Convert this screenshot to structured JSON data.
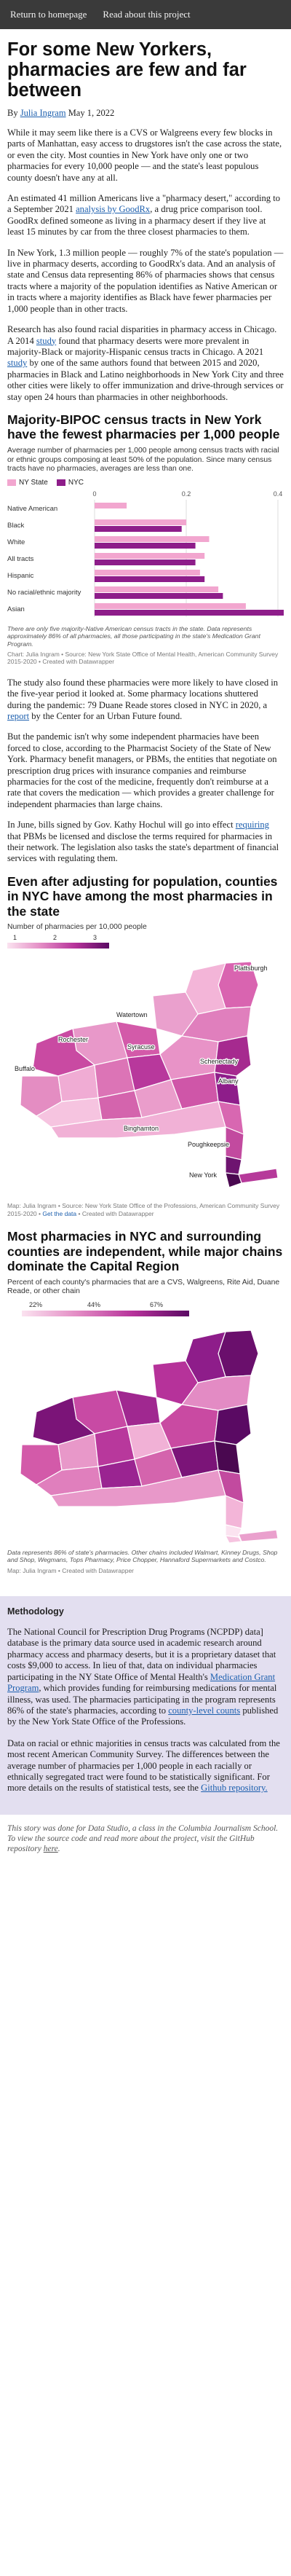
{
  "nav": {
    "home": "Return to homepage",
    "about": "Read about this project"
  },
  "article": {
    "title": "For some New Yorkers, pharmacies are few and far between",
    "byline_prefix": "By ",
    "author": "Julia Ingram",
    "date": "May 1, 2022",
    "p1": "While it may seem like there is a CVS or Walgreens every few blocks in parts of Manhattan, easy access to drugstores isn't the case across the state, or even the city. Most counties in New York have only one or two pharmacies for every 10,000 people — and the state's least populous county doesn't have any at all.",
    "p2a": "An estimated 41 million Americans live a \"pharmacy desert,\" according to a September 2021 ",
    "p2link": "analysis by GoodRx",
    "p2b": ", a drug price comparison tool. GoodRx defined someone as living in a pharmacy desert if they live at least 15 minutes by car from the three closest pharmacies to them.",
    "p3": "In New York, 1.3 million people — roughly 7% of the state's population — live in pharmacy deserts, according to GoodRx's data. And an analysis of state and Census data representing 86% of pharmacies shows that census tracts where a majority of the population identifies as Native American or in tracts where a majority identifies as Black have fewer pharmacies per 1,000 people than in other tracts.",
    "p4a": "Research has also found racial disparities in pharmacy access in Chicago. A 2014 ",
    "p4link1": "study",
    "p4b": " found that pharmacy deserts were more prevalent in majority-Black or majority-Hispanic census tracts in Chicago. A 2021 ",
    "p4link2": "study",
    "p4c": " by one of the same authors found that between 2015 and 2020, pharmacies in Black and Latino neighborhoods in New York City and three other cities were likely to offer immunization and drive-through services or stay open 24 hours than pharmacies in other neighborhoods.",
    "p5": "The study also found these pharmacies were more likely to have closed in the five-year period it looked at. Some pharmacy locations shuttered during the pandemic: 79 Duane Reade stores closed in NYC in 2020, a ",
    "p5link": "report",
    "p5b": " by the Center for an Urban Future found.",
    "p6": "But the pandemic isn't why some independent pharmacies have been forced to close, according to the Pharmacist Society of the State of New York. Pharmacy benefit managers, or PBMs, the entities that negotiate on prescription drug prices with insurance companies and reimburse pharmacies for the cost of the medicine, frequently don't reimburse at a rate that covers the medication — which provides a greater challenge for independent pharmacies than large chains.",
    "p7a": "In June, bills signed by Gov. Kathy Hochul will go into effect ",
    "p7link": "requiring",
    "p7b": " that PBMs be licensed and disclose the terms required for pharmacies in their network. The legislation also tasks the state's department of financial services with regulating them."
  },
  "chart1": {
    "title": "Majority-BIPOC census tracts in New York have the fewest pharmacies per 1,000 people",
    "subtitle": "Average number of pharmacies per 1,000 people among census tracts with racial or ethnic groups composing at least 50% of the population. Since many census tracts have no pharmacies, averages are less than one.",
    "note": "There are only five majority-Native American census tracts in the state. Data represents approximately 86% of all pharmacies, all those participating in the state's Medication Grant Program.",
    "credit": "Chart: Julia Ingram • Source: New York State Office of Mental Health, American Community Survey 2015-2020 • Created with Datawrapper"
  },
  "chart_data": [
    {
      "type": "bar",
      "title": "Majority-BIPOC census tracts in New York have the fewest pharmacies per 1,000 people",
      "xlabel": "",
      "ylabel": "",
      "xlim": [
        0,
        0.4
      ],
      "ticks": [
        "0",
        "0.2",
        "0.4"
      ],
      "categories": [
        "Native American",
        "Black",
        "White",
        "All tracts",
        "Hispanic",
        "No racial/ethnic majority",
        "Asian"
      ],
      "series": [
        {
          "name": "NY State",
          "color": "#f2a6cf",
          "values": [
            0.07,
            0.2,
            0.25,
            0.24,
            0.23,
            0.27,
            0.33
          ]
        },
        {
          "name": "NYC",
          "color": "#8e1d8a",
          "values": [
            0.0,
            0.19,
            0.22,
            0.22,
            0.24,
            0.28,
            0.42
          ]
        }
      ],
      "legend": "top-left"
    },
    {
      "type": "heatmap",
      "title": "Even after adjusting for population, counties in NYC have among the most pharmacies in the state",
      "subtitle": "Number of pharmacies per 10,000 people",
      "scale_ticks": [
        "1",
        "2",
        "3"
      ],
      "labels": [
        "Plattsburgh",
        "Watertown",
        "Rochester",
        "Syracuse",
        "Buffalo",
        "Schenectady",
        "Albany",
        "Binghamton",
        "Poughkeepsie",
        "New York"
      ]
    },
    {
      "type": "heatmap",
      "title": "Most pharmacies in NYC and surrounding counties are independent, while major chains dominate the Capital Region",
      "subtitle": "Percent of each county's pharmacies that are a CVS, Walgreens, Rite Aid, Duane Reade, or other chain",
      "scale_ticks": [
        "22%",
        "44%",
        "67%"
      ]
    }
  ],
  "chart2": {
    "title": "Even after adjusting for population, counties in NYC have among the most pharmacies in the state",
    "subtitle": "Number of pharmacies per 10,000 people",
    "ticks": [
      "1",
      "2",
      "3"
    ],
    "cities": {
      "plattsburgh": "Plattsburgh",
      "watertown": "Watertown",
      "rochester": "Rochester",
      "syracuse": "Syracuse",
      "buffalo": "Buffalo",
      "schenectady": "Schenectady",
      "albany": "Albany",
      "binghamton": "Binghamton",
      "poughkeepsie": "Poughkeepsie",
      "newyork": "New York"
    },
    "credit_a": "Map: Julia Ingram • Source: New York State Office of the Professions, American Community Survey 2015-2020 • ",
    "credit_link": "Get the data",
    "credit_b": " • Created with Datawrapper"
  },
  "chart3": {
    "title": "Most pharmacies in NYC and surrounding counties are independent, while major chains dominate the Capital Region",
    "subtitle": "Percent of each county's pharmacies that are a CVS, Walgreens, Rite Aid, Duane Reade, or other chain",
    "ticks": [
      "22%",
      "44%",
      "67%"
    ],
    "note": "Data represents 86% of state's pharmacies. Other chains included Walmart, Kinney Drugs, Shop and Shop, Wegmans, Tops Pharmacy, Price Chopper, Hannaford Supermarkets and Costco.",
    "credit": "Map: Julia Ingram • Created with Datawrapper"
  },
  "methodology": {
    "heading": "Methodology",
    "m1a": "The National Council for Prescription Drug Programs (NCPDP) data] database is the primary data source used in academic research around pharmacy access and pharmacy deserts, but it is a proprietary dataset that costs $9,000 to access. In lieu of that, data on individual pharmacies participating in the NY State Office of Mental Health's ",
    "m1link1": "Medication Grant Program",
    "m1b": ", which provides funding for reimbursing medications for mental illness, was used. The pharmacies participating in the program represents 86% of the state's pharmacies, according to ",
    "m1link2": "county-level counts",
    "m1c": " published by the New York State Office of the Professions.",
    "m2a": "Data on racial or ethnic majorities in census tracts was calculated from the most recent American Community Survey. The differences between the average number of pharmacies per 1,000 people in each racially or ethnically segregated tract were found to be statistically significant. For more details on the results of statistical tests, see the ",
    "m2link": "Github repository."
  },
  "footer": {
    "a": "This story was done for Data Studio, a class in the Columbia Journalism School. To view the source code and read more about the project, visit the GitHub repository ",
    "link": "here",
    "b": "."
  },
  "colors": {
    "nav_bg": "#3a3a3a",
    "link": "#1c5fae",
    "ny_state": "#f2a6cf",
    "nyc": "#8e1d8a",
    "method_bg": "#e3dff0"
  }
}
